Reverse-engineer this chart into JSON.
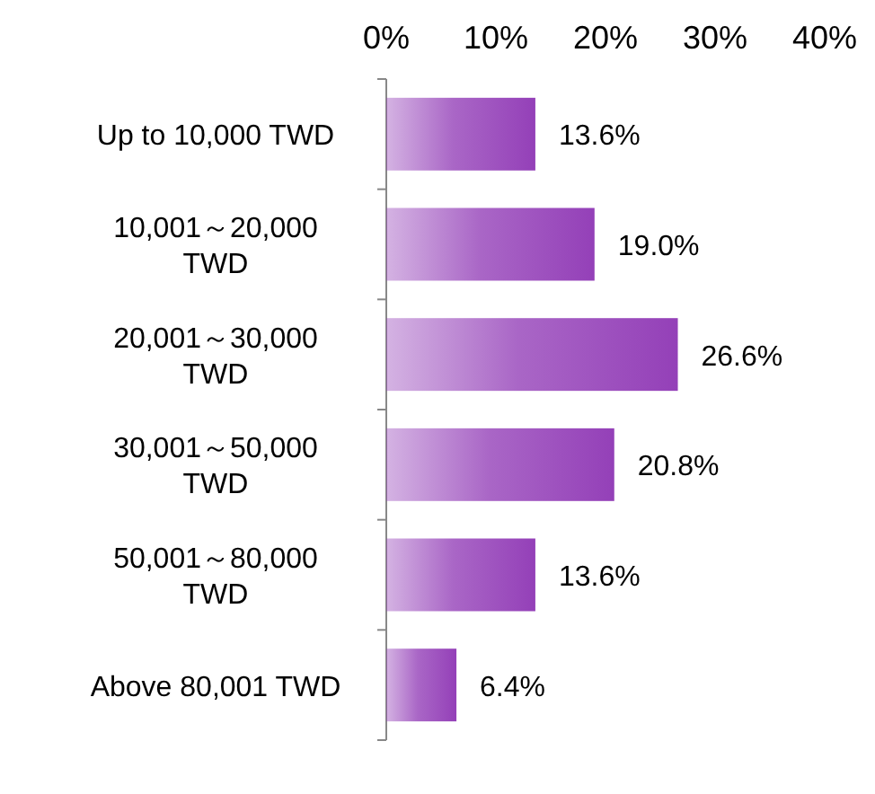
{
  "chart_data": {
    "type": "bar",
    "orientation": "horizontal",
    "categories": [
      "Up to 10,000 TWD",
      "10,001～20,000\nTWD",
      "20,001～30,000\nTWD",
      "30,001～50,000\nTWD",
      "50,001～80,000\nTWD",
      "Above 80,001 TWD"
    ],
    "values": [
      13.6,
      19.0,
      26.6,
      20.8,
      13.6,
      6.4
    ],
    "value_labels": [
      "13.6%",
      "19.0%",
      "26.6%",
      "20.8%",
      "13.6%",
      "6.4%"
    ],
    "color": "#9440b8",
    "xlim": [
      0,
      40
    ],
    "xticks": [
      {
        "value": 0,
        "label": "0%"
      },
      {
        "value": 10,
        "label": "10%"
      },
      {
        "value": 20,
        "label": "20%"
      },
      {
        "value": 30,
        "label": "30%"
      },
      {
        "value": 40,
        "label": "40%"
      }
    ]
  }
}
